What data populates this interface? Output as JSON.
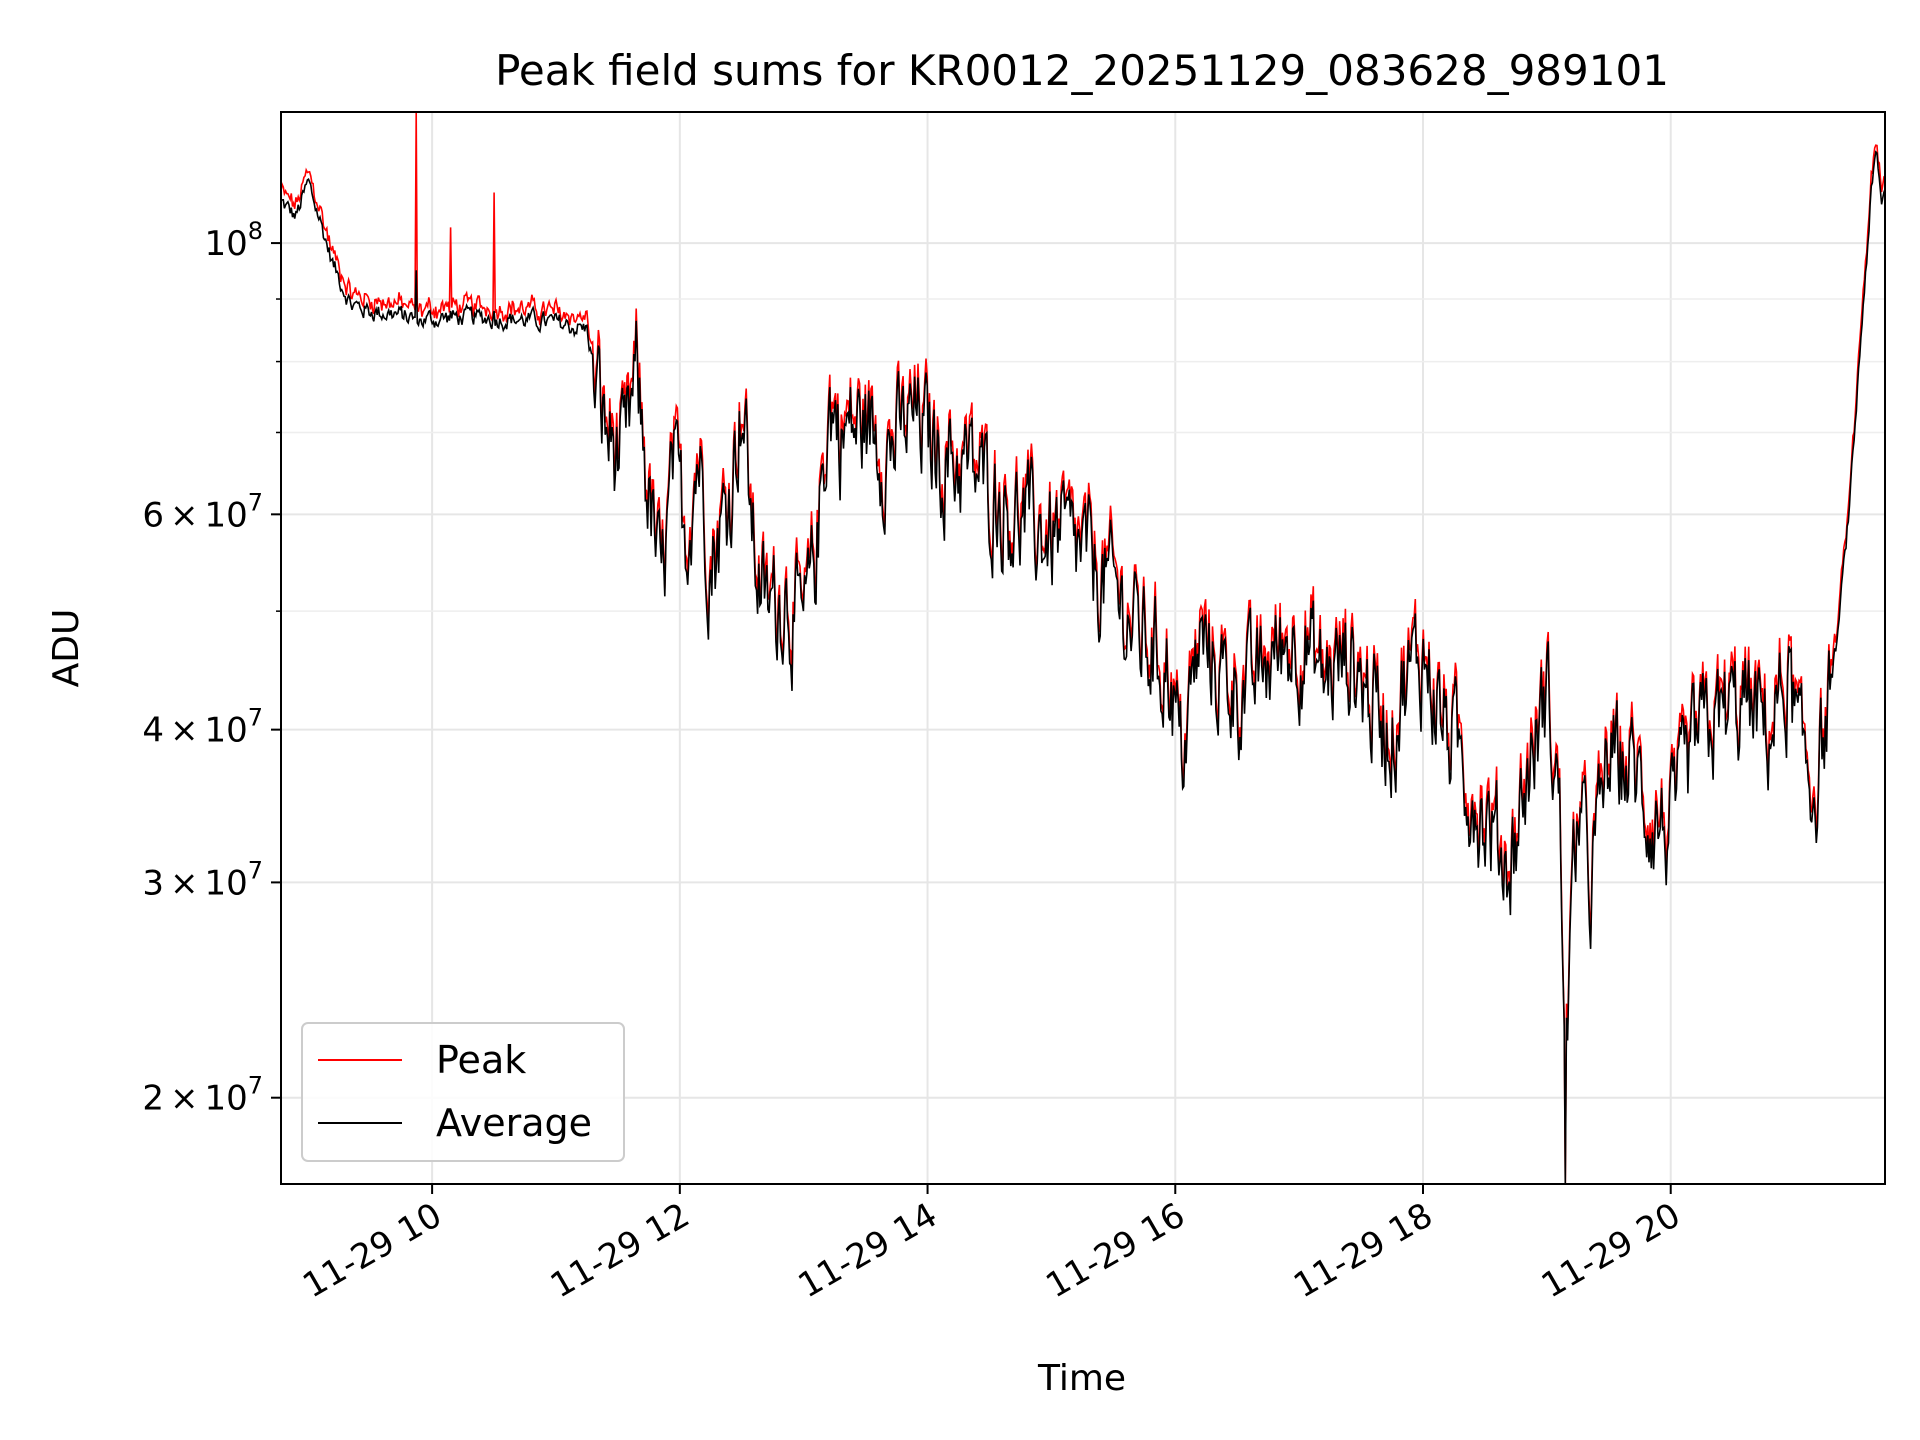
{
  "chart_data": {
    "type": "line",
    "title": "Peak field sums for KR0012_20251129_083628_989101",
    "xlabel": "Time",
    "ylabel": "ADU",
    "yscale": "log",
    "ylim": [
      17000000,
      128000000
    ],
    "xlim": [
      8.78,
      21.73
    ],
    "grid": true,
    "legend_position": "lower left",
    "x_ticks": [
      {
        "value": 10,
        "label": "11-29 10"
      },
      {
        "value": 12,
        "label": "11-29 12"
      },
      {
        "value": 14,
        "label": "11-29 14"
      },
      {
        "value": 16,
        "label": "11-29 16"
      },
      {
        "value": 18,
        "label": "11-29 18"
      },
      {
        "value": 20,
        "label": "11-29 20"
      }
    ],
    "y_major_ticks": [
      {
        "value": 100000000,
        "base": "10",
        "exp": "8",
        "mant": ""
      },
      {
        "value": 60000000,
        "base": "10",
        "exp": "7",
        "mant": "6"
      },
      {
        "value": 40000000,
        "base": "10",
        "exp": "7",
        "mant": "4"
      },
      {
        "value": 30000000,
        "base": "10",
        "exp": "7",
        "mant": "3"
      },
      {
        "value": 20000000,
        "base": "10",
        "exp": "7",
        "mant": "2"
      }
    ],
    "y_minor_grid": [
      90000000,
      80000000,
      70000000,
      50000000
    ],
    "series": [
      {
        "name": "Peak",
        "color": "#ff0000"
      },
      {
        "name": "Average",
        "color": "#000000"
      }
    ],
    "trend": {
      "x": [
        8.78,
        8.9,
        9.0,
        9.1,
        9.2,
        9.35,
        9.5,
        9.7,
        9.9,
        10.2,
        10.5,
        10.8,
        11.0,
        11.25,
        11.4,
        11.55,
        11.65,
        11.75,
        11.85,
        11.95,
        12.05,
        12.15,
        12.25,
        12.4,
        12.5,
        12.6,
        12.7,
        12.85,
        13.0,
        13.1,
        13.2,
        13.3,
        13.5,
        13.7,
        13.9,
        14.1,
        14.3,
        14.5,
        14.7,
        14.9,
        15.1,
        15.3,
        15.5,
        15.7,
        15.95,
        16.05,
        16.2,
        16.4,
        16.6,
        16.8,
        17.0,
        17.2,
        17.4,
        17.6,
        17.75,
        17.85,
        18.0,
        18.15,
        18.3,
        18.5,
        18.7,
        18.85,
        19.0,
        19.1,
        19.15,
        19.25,
        19.35,
        19.5,
        19.7,
        19.85,
        20.0,
        20.2,
        20.4,
        20.6,
        20.8,
        20.95,
        21.05,
        21.15,
        21.25,
        21.35,
        21.45,
        21.55,
        21.62,
        21.66,
        21.7,
        21.73
      ],
      "y": [
        108000000,
        105000000,
        112000000,
        104000000,
        96000000,
        89000000,
        88000000,
        87500000,
        86500000,
        87000000,
        86800000,
        86500000,
        86000000,
        85000000,
        70000000,
        66000000,
        78000000,
        62000000,
        52000000,
        65000000,
        58000000,
        68000000,
        55000000,
        62000000,
        75000000,
        56000000,
        50000000,
        52000000,
        48000000,
        56000000,
        74000000,
        70000000,
        71000000,
        68000000,
        72000000,
        67000000,
        66000000,
        63000000,
        60000000,
        58000000,
        57000000,
        55000000,
        52000000,
        48000000,
        45000000,
        38000000,
        47000000,
        44000000,
        43000000,
        46000000,
        48000000,
        44000000,
        46000000,
        42000000,
        40000000,
        44000000,
        46000000,
        41000000,
        38000000,
        34000000,
        31000000,
        37000000,
        43000000,
        35000000,
        22000000,
        35000000,
        30000000,
        38000000,
        37000000,
        34000000,
        33000000,
        39000000,
        41000000,
        42000000,
        40000000,
        44000000,
        38000000,
        36000000,
        40000000,
        48000000,
        62000000,
        88000000,
        110000000,
        118000000,
        108000000,
        110000000
      ]
    },
    "spikes": [
      {
        "x": 9.87,
        "peak": 128000000,
        "average": 95000000
      },
      {
        "x": 10.15,
        "peak": 103000000,
        "average": 88000000
      },
      {
        "x": 10.5,
        "peak": 110000000,
        "average": 88000000
      },
      {
        "x": 19.15,
        "peak": 17000000,
        "average": 17000000
      }
    ]
  }
}
